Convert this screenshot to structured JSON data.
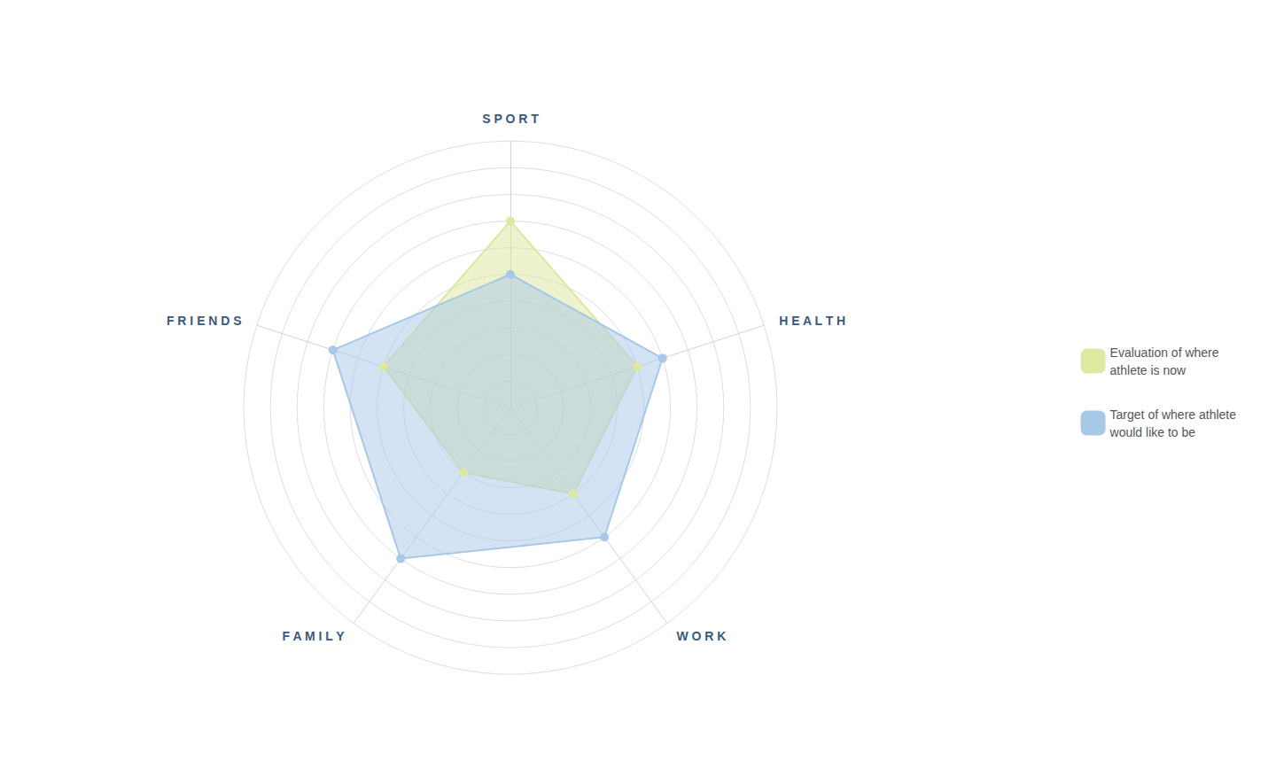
{
  "chart_data": {
    "type": "radar",
    "categories": [
      "S P O R T",
      "H E A L T H",
      "W O R K",
      "F A M I L Y",
      "F R I E N D S"
    ],
    "series": [
      {
        "name": "Evaluation of where\nathlete is now",
        "color": "#dde8a0",
        "values": [
          7,
          5,
          4,
          3,
          5
        ]
      },
      {
        "name": "Target of where athlete\nwould like to be",
        "color": "#a8c8e8",
        "values": [
          5,
          6,
          6,
          7,
          7
        ]
      }
    ],
    "ylim": [
      0,
      10
    ],
    "yticks": [
      0,
      1,
      2,
      3,
      4,
      5,
      6,
      7,
      8,
      9,
      10
    ],
    "tick_labels": false,
    "grid": true,
    "legend": "right"
  }
}
